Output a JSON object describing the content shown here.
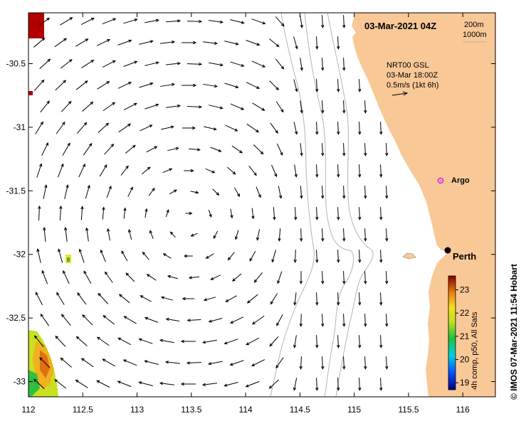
{
  "title": "03-Mar-2021 04Z",
  "contour_legend": {
    "line1": "200m",
    "line2": "1000m"
  },
  "current_info": {
    "product": "NRT00 GSL",
    "time": "03-Mar 18:00Z",
    "scale": "0.5m/s (1kt 6h)"
  },
  "places": {
    "argo": "Argo",
    "perth": "Perth"
  },
  "colorbar": {
    "label": "4h comp, p50, All Sats",
    "ticks": [
      "23",
      "22",
      "21",
      "20",
      "19"
    ],
    "min": 18.7,
    "max": 23.6
  },
  "credit": "© IMOS 07-Mar-2021 11:54 Hobart",
  "axes": {
    "x_ticks": [
      "112",
      "112.5",
      "113",
      "113.5",
      "114",
      "114.5",
      "115",
      "115.5",
      "116"
    ],
    "y_ticks": [
      "-30.5",
      "-31",
      "-31.5",
      "-32",
      "-32.5",
      "-33"
    ]
  },
  "colors": {
    "land": "#f9c897",
    "ocean": "#ffffff",
    "contour": "#b4b4b4",
    "argo_marker": "#e040e0",
    "sst_warm": "#b00000",
    "sst_mid": "#f0e020",
    "sst_cool": "#30c040"
  }
}
